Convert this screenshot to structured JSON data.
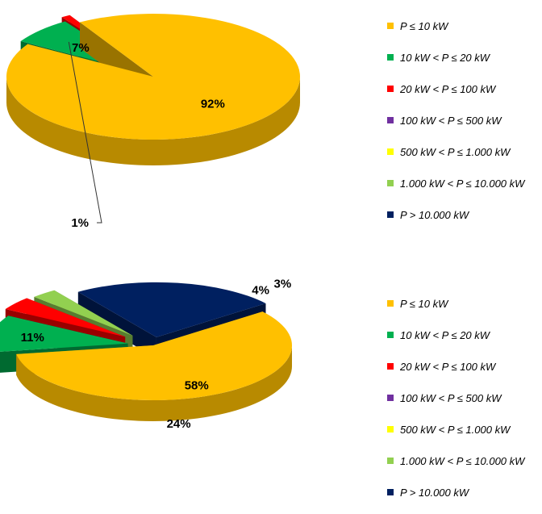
{
  "chart_data": [
    {
      "type": "pie",
      "categories": [
        "P ≤ 10 kW",
        "10 kW < P ≤ 20 kW",
        "20 kW < P ≤ 100 kW",
        "100 kW < P  ≤ 500 kW",
        "500 kW < P  ≤ 1.000 kW",
        "1.000 kW < P  ≤ 10.000 kW",
        "P  > 10.000 kW"
      ],
      "values": [
        92,
        7,
        1,
        0,
        0,
        0,
        0
      ],
      "data_labels": [
        "92%",
        "7%",
        "1%",
        "",
        "",
        "",
        ""
      ],
      "legend_position": "right",
      "title": ""
    },
    {
      "type": "pie",
      "categories": [
        "P ≤ 10 kW",
        "10 kW < P ≤ 20 kW",
        "20 kW < P ≤ 100 kW",
        "100 kW < P  ≤ 500 kW",
        "500 kW < P  ≤ 1.000 kW",
        "1.000 kW < P  ≤ 10.000 kW",
        "P  > 10.000 kW"
      ],
      "values": [
        58,
        11,
        4,
        0,
        0,
        3,
        24
      ],
      "data_labels": [
        "58%",
        "11%",
        "4%",
        "",
        "",
        "3%",
        "24%"
      ],
      "legend_position": "right",
      "title": ""
    }
  ],
  "colors": [
    "#FFC000",
    "#00B050",
    "#FF0000",
    "#7030A0",
    "#FFFF00",
    "#92D050",
    "#002060"
  ]
}
